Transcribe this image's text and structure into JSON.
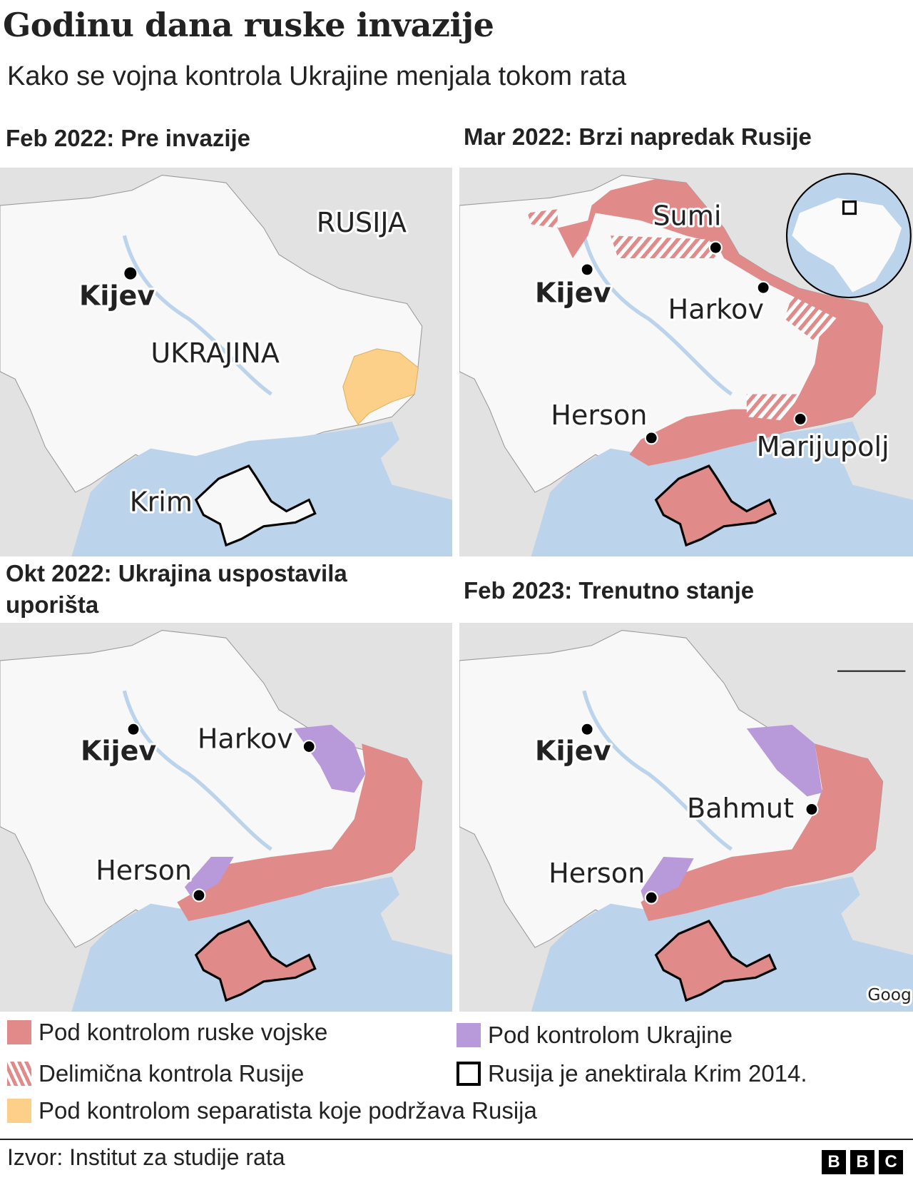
{
  "title": "Godinu dana ruske invazije",
  "subtitle": "Kako se vojna kontrola Ukrajine menjala tokom rata",
  "panels": [
    {
      "heading": "Feb 2022: Pre invazije",
      "labels": {
        "kyiv": "Kijev",
        "russia": "RUSIJA",
        "ukraine": "UKRAJINA",
        "crimea": "Krim"
      }
    },
    {
      "heading": "Mar 2022: Brzi napredak Rusije",
      "labels": {
        "kyiv": "Kijev",
        "sumy": "Sumi",
        "kharkiv": "Harkov",
        "kherson": "Herson",
        "mariupol": "Marijupolj"
      }
    },
    {
      "heading": "Okt 2022: Ukrajina uspostavila uporišta",
      "labels": {
        "kyiv": "Kijev",
        "kharkiv": "Harkov",
        "kherson": "Herson"
      }
    },
    {
      "heading": "Feb 2023: Trenutno stanje",
      "labels": {
        "kyiv": "Kijev",
        "bakhmut": "Bahmut",
        "kherson": "Herson"
      },
      "attribution": "Goog"
    }
  ],
  "legend": [
    {
      "label": "Pod kontrolom ruske vojske",
      "color": "#e08a8a",
      "style": "solid"
    },
    {
      "label": "Pod kontrolom Ukrajine",
      "color": "#b89ada",
      "style": "solid"
    },
    {
      "label": "Delimična kontrola Rusije",
      "color": "#e08a8a",
      "style": "hatched"
    },
    {
      "label": "Rusija je anektirala Krim 2014.",
      "color": "#000000",
      "style": "outline"
    },
    {
      "label": "Pod kontrolom separatista koje podržava Rusija",
      "color": "#fdd08a",
      "style": "solid"
    }
  ],
  "source": "Izvor: Institut za studije rata",
  "logo": "BBC",
  "colors": {
    "land": "#f8f8f8",
    "foreign": "#e2e2e2",
    "sea": "#bcd3ec"
  }
}
